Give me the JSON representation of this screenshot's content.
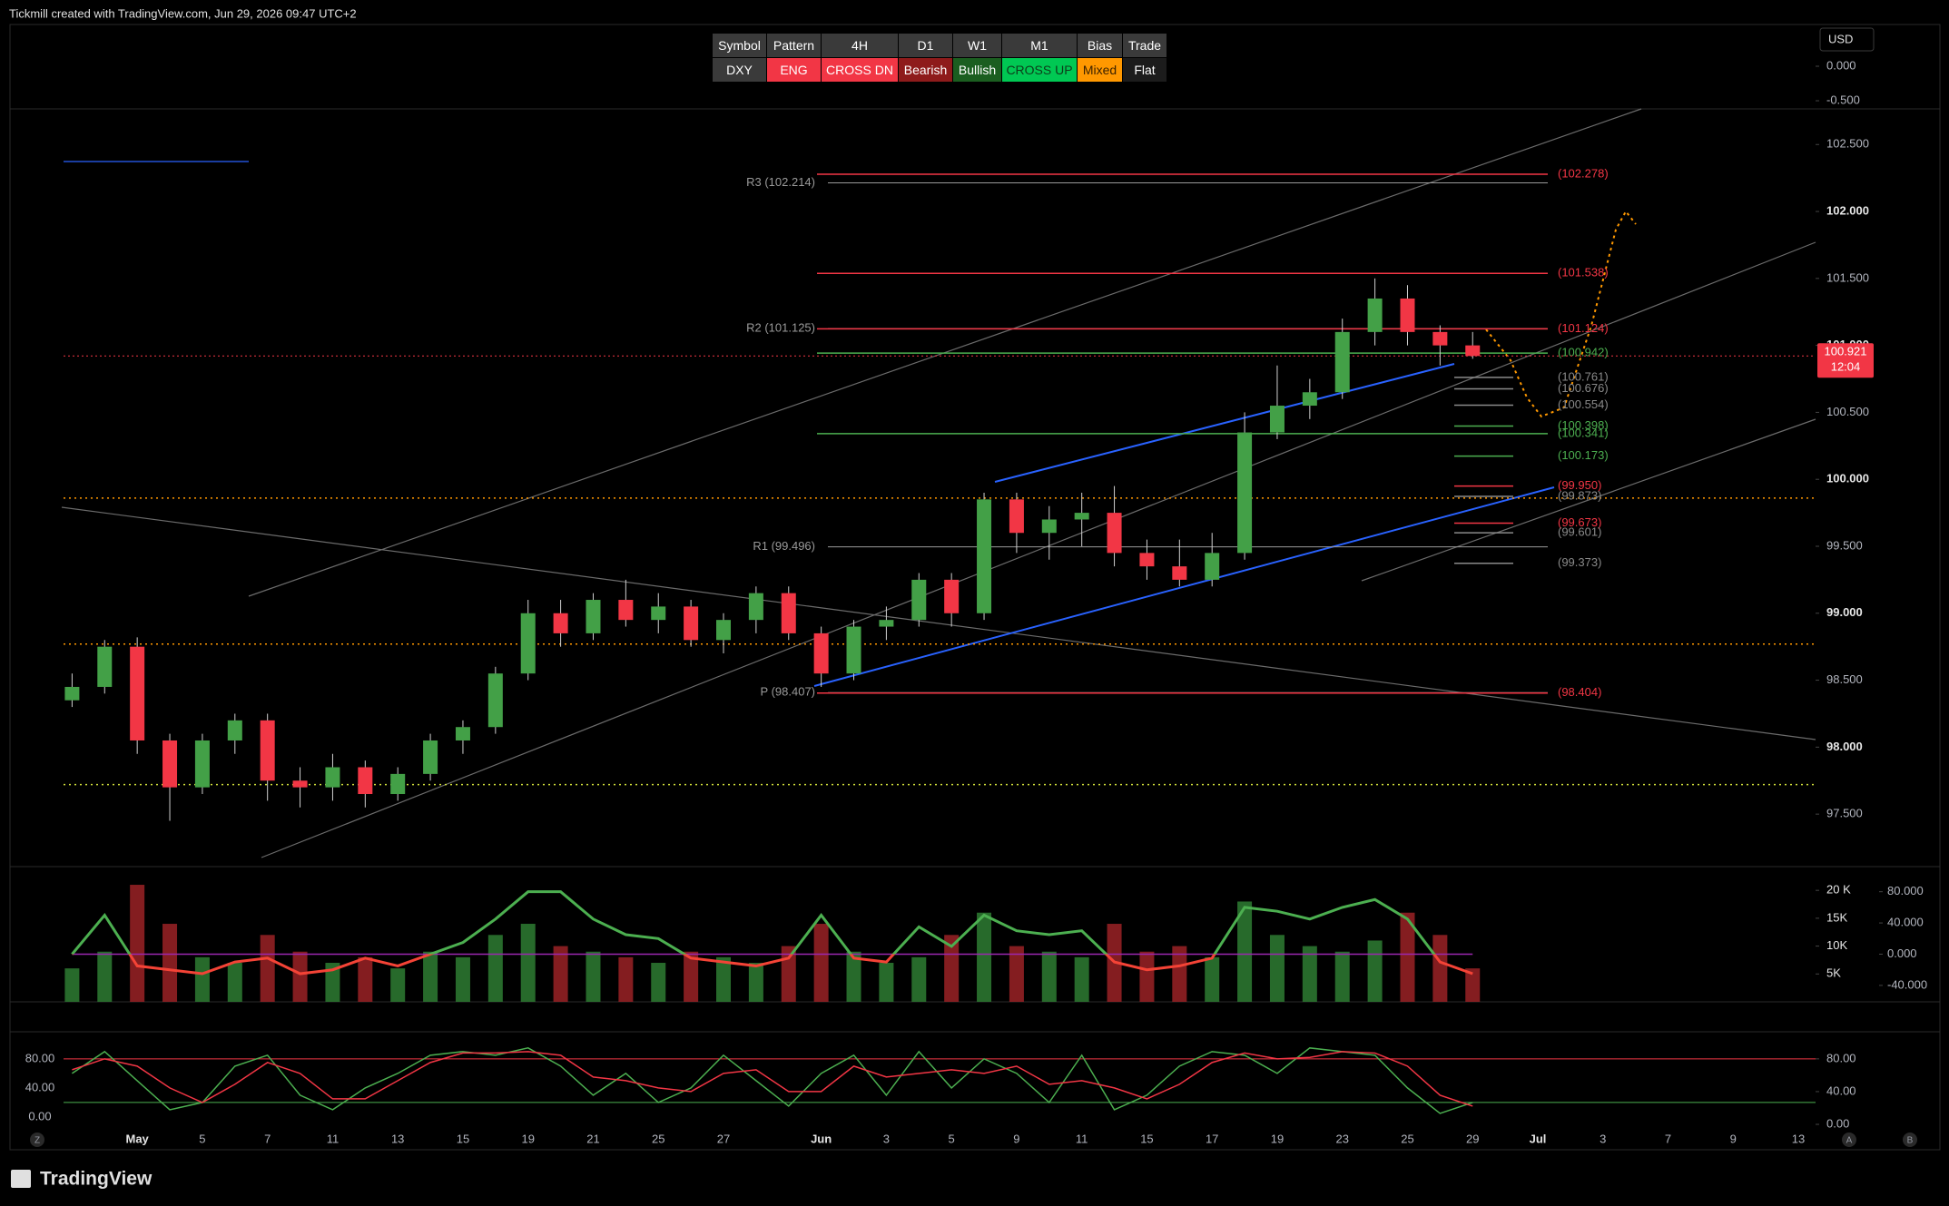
{
  "header": {
    "title": "Tickmill created with TradingView.com, Jun 29, 2026 09:47 UTC+2",
    "currency": "USD",
    "brand": "TradingView",
    "buttons": [
      "Z",
      "A",
      "B"
    ]
  },
  "table": {
    "header": [
      "Symbol",
      "Pattern",
      "4H",
      "D1",
      "W1",
      "M1",
      "Bias",
      "Trade"
    ],
    "rows": [
      [
        "DXY",
        "ENG",
        "CROSS DN",
        "Bearish",
        "Bullish",
        "CROSS UP",
        "Mixed",
        "Flat"
      ]
    ]
  },
  "chart_data": [
    {
      "type": "candlestick",
      "categories": [
        null,
        null,
        "May",
        null,
        "5",
        null,
        "7",
        null,
        "11",
        null,
        "13",
        null,
        "15",
        null,
        "19",
        null,
        "21",
        null,
        "25",
        null,
        "27",
        null,
        null,
        "Jun",
        null,
        "3",
        null,
        "5",
        null,
        "9",
        null,
        "11",
        null,
        "15",
        null,
        "17",
        null,
        "19",
        null,
        "23",
        null,
        "25",
        null,
        "29",
        null,
        "Jul",
        null,
        "3",
        null,
        "7",
        null,
        "9",
        null,
        "13"
      ],
      "open": [
        98.35,
        98.45,
        98.75,
        98.05,
        97.7,
        98.05,
        98.2,
        97.75,
        97.7,
        97.85,
        97.65,
        97.8,
        98.05,
        98.15,
        98.55,
        99.0,
        98.85,
        99.1,
        98.95,
        99.05,
        98.8,
        98.95,
        99.15,
        98.85,
        98.55,
        98.9,
        98.95,
        99.25,
        99.0,
        99.85,
        99.6,
        99.7,
        99.75,
        99.45,
        99.35,
        99.25,
        99.45,
        100.35,
        100.55,
        100.65,
        101.1,
        101.35,
        101.1,
        101.0,
        null,
        null,
        null,
        null,
        null,
        null,
        null,
        null,
        null,
        null
      ],
      "high": [
        98.55,
        98.8,
        98.82,
        98.1,
        98.1,
        98.25,
        98.25,
        97.85,
        97.95,
        97.9,
        97.85,
        98.1,
        98.2,
        98.6,
        99.1,
        99.1,
        99.15,
        99.25,
        99.15,
        99.1,
        99.0,
        99.2,
        99.2,
        98.9,
        98.95,
        99.05,
        99.3,
        99.3,
        99.9,
        99.9,
        99.8,
        99.9,
        99.95,
        99.55,
        99.55,
        99.6,
        100.5,
        100.85,
        100.75,
        101.2,
        101.5,
        101.45,
        101.15,
        101.1,
        null,
        null,
        null,
        null,
        null,
        null,
        null,
        null,
        null,
        null
      ],
      "low": [
        98.3,
        98.4,
        97.95,
        97.45,
        97.65,
        97.95,
        97.6,
        97.55,
        97.6,
        97.55,
        97.6,
        97.75,
        97.95,
        98.1,
        98.5,
        98.75,
        98.8,
        98.9,
        98.85,
        98.75,
        98.7,
        98.85,
        98.8,
        98.45,
        98.5,
        98.8,
        98.9,
        98.9,
        98.95,
        99.45,
        99.4,
        99.5,
        99.35,
        99.25,
        99.2,
        99.2,
        99.4,
        100.3,
        100.45,
        100.6,
        101.0,
        101.0,
        100.85,
        100.9,
        null,
        null,
        null,
        null,
        null,
        null,
        null,
        null,
        null,
        null
      ],
      "close": [
        98.45,
        98.75,
        98.05,
        97.7,
        98.05,
        98.2,
        97.75,
        97.7,
        97.85,
        97.65,
        97.8,
        98.05,
        98.15,
        98.55,
        99.0,
        98.85,
        99.1,
        98.95,
        99.05,
        98.8,
        98.95,
        99.15,
        98.85,
        98.55,
        98.9,
        98.95,
        99.25,
        99.0,
        99.85,
        99.6,
        99.7,
        99.75,
        99.45,
        99.35,
        99.25,
        99.45,
        100.35,
        100.55,
        100.65,
        101.1,
        101.35,
        101.1,
        101.0,
        100.921,
        null,
        null,
        null,
        null,
        null,
        null,
        null,
        null,
        null,
        null
      ],
      "up_color": "#43a047",
      "down_color": "#f23645",
      "ylim": [
        97.108,
        102.766
      ],
      "yticks": [
        {
          "value": 97.5,
          "label": "97.500"
        },
        {
          "value": 98,
          "label": "98.000"
        },
        {
          "value": 98.5,
          "label": "98.500"
        },
        {
          "value": 99,
          "label": "99.000"
        },
        {
          "value": 99.5,
          "label": "99.500"
        },
        {
          "value": 100,
          "label": "100.000"
        },
        {
          "value": 100.5,
          "label": "100.500"
        },
        {
          "value": 101,
          "label": "101.000"
        },
        {
          "value": 101.5,
          "label": "101.500"
        },
        {
          "value": 102,
          "label": "102.000"
        },
        {
          "value": 102.5,
          "label": "102.500"
        }
      ],
      "last_price": 100.921,
      "countdown": "12:04",
      "pivots": [
        {
          "value": 102.214,
          "label": "R3 (102.214)"
        },
        {
          "value": 101.125,
          "label": "R2 (101.125)"
        },
        {
          "value": 99.496,
          "label": "R1 (99.496)"
        },
        {
          "value": 98.407,
          "label": "P (98.407)"
        }
      ],
      "levels": [
        {
          "value": 102.278,
          "label": "(102.278)",
          "color": "#f23645"
        },
        {
          "value": 101.538,
          "label": "(101.538)",
          "color": "#f23645"
        },
        {
          "value": 101.124,
          "label": "(101.124)",
          "color": "#f23645"
        },
        {
          "value": 100.942,
          "label": "(100.942)",
          "color": "#4caf50"
        },
        {
          "value": 100.761,
          "label": "(100.761)",
          "color": "#8a8a8a"
        },
        {
          "value": 100.676,
          "label": "(100.676)",
          "color": "#8a8a8a"
        },
        {
          "value": 100.554,
          "label": "(100.554)",
          "color": "#8a8a8a"
        },
        {
          "value": 100.398,
          "label": "(100.398)",
          "color": "#4caf50"
        },
        {
          "value": 100.341,
          "label": "(100.341)",
          "color": "#4caf50"
        },
        {
          "value": 100.173,
          "label": "(100.173)",
          "color": "#4caf50"
        },
        {
          "value": 99.95,
          "label": "(99.950)",
          "color": "#f23645"
        },
        {
          "value": 99.873,
          "label": "(99.873)",
          "color": "#8a8a8a"
        },
        {
          "value": 99.673,
          "label": "(99.673)",
          "color": "#f23645"
        },
        {
          "value": 99.601,
          "label": "(99.601)",
          "color": "#8a8a8a"
        },
        {
          "value": 99.373,
          "label": "(99.373)",
          "color": "#8a8a8a"
        },
        {
          "value": 98.404,
          "label": "(98.404)",
          "color": "#f23645"
        }
      ],
      "dotted_levels": [
        {
          "value": 99.86,
          "color": "#ff9800"
        },
        {
          "value": 98.77,
          "color": "#ff9800"
        },
        {
          "value": 97.72,
          "color": "#cddc39"
        }
      ]
    },
    {
      "type": "oscillator",
      "values": [
        0,
        50,
        -15,
        -20,
        -25,
        -10,
        -5,
        -25,
        -20,
        -5,
        -15,
        0,
        15,
        45,
        80,
        80,
        45,
        25,
        20,
        -5,
        -10,
        -15,
        -5,
        50,
        -5,
        -10,
        35,
        10,
        50,
        30,
        25,
        30,
        -10,
        -20,
        -15,
        -5,
        60,
        55,
        45,
        60,
        70,
        45,
        -10,
        -25,
        null,
        null,
        null,
        null,
        null,
        null,
        null,
        null,
        null,
        null
      ],
      "color": "#4caf50",
      "negative_color": "#f44336",
      "zero_color": "#9c27b0",
      "ylim": [
        -61,
        111
      ],
      "yticks": [
        {
          "value": 80,
          "label": "80.000"
        },
        {
          "value": 40,
          "label": "40.000"
        },
        {
          "value": 0,
          "label": "0.000"
        },
        {
          "value": -40,
          "label": "-40.000"
        }
      ],
      "volume": [
        6000,
        9000,
        21000,
        14000,
        8000,
        7000,
        12000,
        9000,
        7000,
        8000,
        6000,
        9000,
        8000,
        12000,
        14000,
        10000,
        9000,
        8000,
        7000,
        9000,
        8000,
        7000,
        10000,
        14000,
        9000,
        7000,
        8000,
        12000,
        16000,
        10000,
        9000,
        8000,
        14000,
        9000,
        10000,
        8000,
        18000,
        12000,
        10000,
        9000,
        11000,
        16000,
        12000,
        6000,
        null,
        null,
        null,
        null,
        null,
        null,
        null,
        null,
        null,
        null
      ],
      "volume_lim": [
        0,
        24100
      ],
      "volume_ticks": [
        {
          "value": 20000,
          "label": "20 K"
        },
        {
          "value": 15000,
          "label": "15K"
        },
        {
          "value": 10000,
          "label": "10K"
        },
        {
          "value": 5000,
          "label": "5K"
        }
      ]
    },
    {
      "type": "stochastic",
      "series": [
        {
          "color": "#4caf50",
          "values": [
            60,
            90,
            50,
            10,
            20,
            70,
            85,
            30,
            10,
            40,
            60,
            85,
            90,
            85,
            95,
            70,
            30,
            60,
            20,
            40,
            85,
            50,
            15,
            60,
            85,
            30,
            90,
            40,
            80,
            60,
            20,
            85,
            10,
            30,
            70,
            90,
            85,
            60,
            95,
            90,
            85,
            40,
            5,
            20,
            null,
            null,
            null,
            null,
            null,
            null,
            null,
            null,
            null,
            null
          ]
        },
        {
          "color": "#f23645",
          "values": [
            65,
            80,
            70,
            40,
            20,
            45,
            75,
            60,
            25,
            25,
            50,
            75,
            88,
            88,
            90,
            85,
            55,
            50,
            40,
            35,
            60,
            65,
            35,
            35,
            70,
            55,
            60,
            65,
            60,
            70,
            45,
            50,
            40,
            25,
            45,
            75,
            88,
            80,
            82,
            90,
            88,
            70,
            30,
            15,
            null,
            null,
            null,
            null,
            null,
            null,
            null,
            null,
            null,
            null
          ]
        }
      ],
      "ylim": [
        -45,
        116
      ],
      "yticks": [
        {
          "value": 80,
          "label": "80.00"
        },
        {
          "value": 40,
          "label": "40.00"
        },
        {
          "value": 0,
          "label": "0.00"
        }
      ],
      "y2lim": [
        -31,
        112
      ],
      "y2ticks": [
        {
          "value": 80,
          "label": "80.00"
        },
        {
          "value": 40,
          "label": "40.00"
        },
        {
          "value": 0,
          "label": "0.00"
        }
      ],
      "bands": [
        {
          "value": 80,
          "color": "#f23645"
        },
        {
          "value": 20,
          "color": "#4caf50"
        }
      ]
    },
    {
      "type": "indicator",
      "ylim": [
        -0.618,
        0.605
      ],
      "yticks": [
        {
          "value": 0,
          "label": "0.000"
        },
        {
          "value": -0.5,
          "label": "-0.500"
        }
      ]
    }
  ]
}
